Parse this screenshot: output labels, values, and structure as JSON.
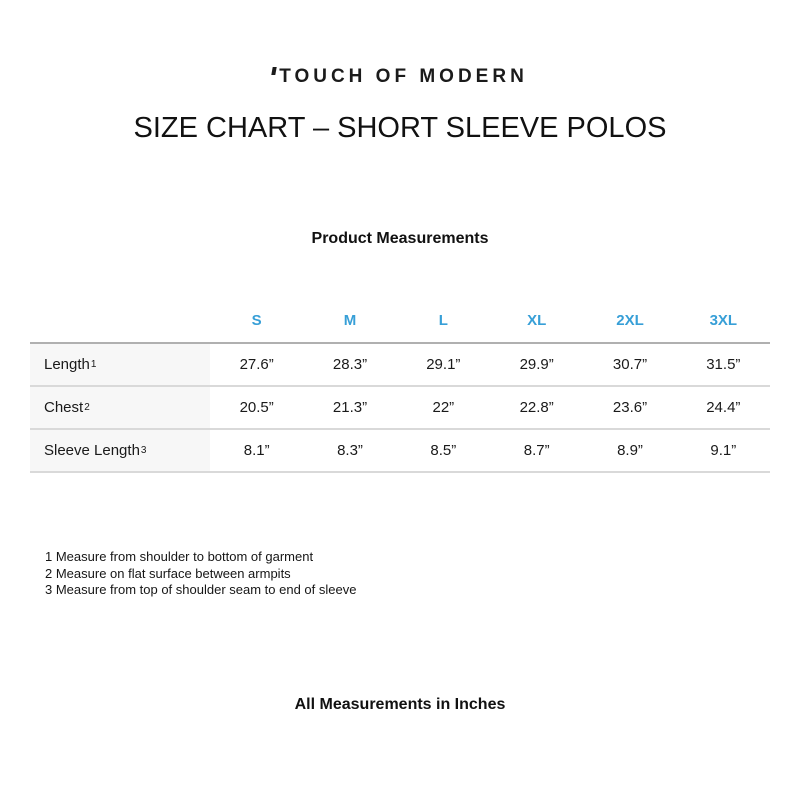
{
  "brand": {
    "logo_text": "TOUCH OF MODERN"
  },
  "page": {
    "title": "SIZE CHART – SHORT SLEEVE POLOS",
    "subtitle": "Product Measurements",
    "footer_note": "All Measurements in Inches"
  },
  "colors": {
    "accent_blue": "#379fd7",
    "label_column_bg": "#f7f7f7",
    "header_rule": "#b0b0b0",
    "row_rule": "#d9d9d9"
  },
  "table": {
    "columns": [
      "S",
      "M",
      "L",
      "XL",
      "2XL",
      "3XL"
    ],
    "rows": [
      {
        "label": "Length",
        "sup": "1",
        "values": [
          "27.6”",
          "28.3”",
          "29.1”",
          "29.9”",
          "30.7”",
          "31.5”"
        ]
      },
      {
        "label": "Chest",
        "sup": "2",
        "values": [
          "20.5”",
          "21.3”",
          "22”",
          "22.8”",
          "23.6”",
          "24.4”"
        ]
      },
      {
        "label": "Sleeve Length",
        "sup": "3",
        "values": [
          "8.1”",
          "8.3”",
          "8.5”",
          "8.7”",
          "8.9”",
          "9.1”"
        ]
      }
    ]
  },
  "footnotes": [
    "1 Measure from shoulder to bottom of garment",
    "2 Measure on flat surface between armpits",
    "3 Measure from top of shoulder seam to end of sleeve"
  ],
  "chart_data": {
    "type": "table",
    "title": "SIZE CHART – SHORT SLEEVE POLOS",
    "subtitle": "Product Measurements",
    "columns": [
      "S",
      "M",
      "L",
      "XL",
      "2XL",
      "3XL"
    ],
    "series": [
      {
        "name": "Length (in)",
        "values": [
          27.6,
          28.3,
          29.1,
          29.9,
          30.7,
          31.5
        ]
      },
      {
        "name": "Chest (in)",
        "values": [
          20.5,
          21.3,
          22,
          22.8,
          23.6,
          24.4
        ]
      },
      {
        "name": "Sleeve Length (in)",
        "values": [
          8.1,
          8.3,
          8.5,
          8.7,
          8.9,
          9.1
        ]
      }
    ],
    "units": "inches"
  }
}
